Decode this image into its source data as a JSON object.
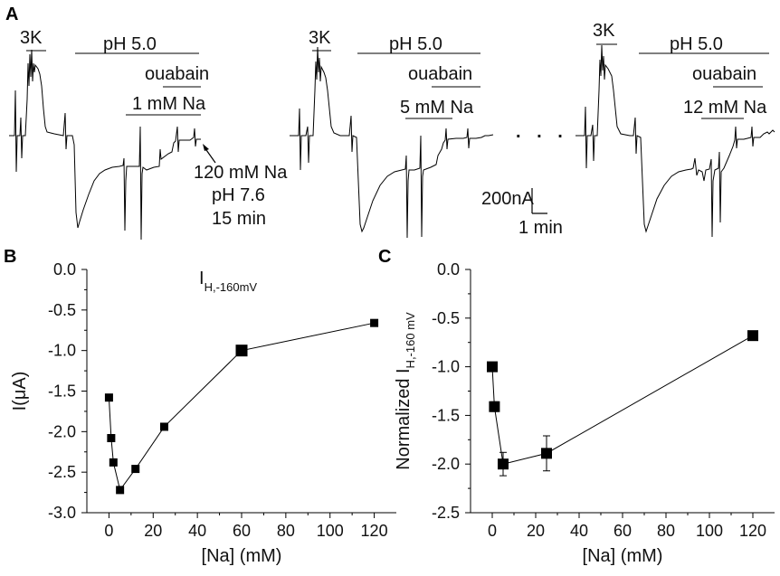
{
  "panel_a": {
    "letter": "A",
    "traces": [
      {
        "k_label": "3K",
        "ph_label": "pH 5.0",
        "ouabain_label": "ouabain",
        "na_label": "1 mM Na"
      },
      {
        "k_label": "3K",
        "ph_label": "pH 5.0",
        "ouabain_label": "ouabain",
        "na_label": "5 mM Na"
      },
      {
        "k_label": "3K",
        "ph_label": "pH 5.0",
        "ouabain_label": "ouabain",
        "na_label": "12 mM Na"
      }
    ],
    "wash_annotation": [
      "120 mM Na",
      "pH 7.6",
      "15 min"
    ],
    "ellipsis": ". . .",
    "scale_current": "200nA",
    "scale_time": "1 min"
  },
  "chart_data": [
    {
      "panel": "B",
      "type": "line",
      "inset_label": "I",
      "inset_sub": "H,-160mV",
      "xlabel": "[Na] (mM)",
      "ylabel": "I(μA)",
      "xlim": [
        -10,
        130
      ],
      "ylim": [
        -3.0,
        0.0
      ],
      "xticks": [
        0,
        20,
        40,
        60,
        80,
        100,
        120
      ],
      "yticks": [
        0.0,
        -0.5,
        -1.0,
        -1.5,
        -2.0,
        -2.5,
        -3.0
      ],
      "ytick_labels": [
        "0.0",
        "-0.5",
        "-1.0",
        "-1.5",
        "-2.0",
        "-2.5",
        "-3.0"
      ],
      "x": [
        0,
        1,
        2,
        5,
        12,
        25,
        60,
        120
      ],
      "y": [
        -1.58,
        -2.08,
        -2.38,
        -2.72,
        -2.46,
        -1.94,
        -1.0,
        -0.66
      ],
      "marker_sizes": [
        "s",
        "s",
        "s",
        "s",
        "s",
        "s",
        "l",
        "s"
      ]
    },
    {
      "panel": "C",
      "type": "line",
      "ylabel_prefix": "Normalized I",
      "ylabel_sub": "H,-160 mV",
      "xlabel": "[Na] (mM)",
      "xlim": [
        -10,
        130
      ],
      "ylim": [
        -2.5,
        0.0
      ],
      "xticks": [
        0,
        20,
        40,
        60,
        80,
        100,
        120
      ],
      "yticks": [
        0.0,
        -0.5,
        -1.0,
        -1.5,
        -2.0,
        -2.5
      ],
      "ytick_labels": [
        "0.0",
        "-0.5",
        "-1.0",
        "-1.5",
        "-2.0",
        "-2.5"
      ],
      "x": [
        0,
        1,
        5,
        25,
        120
      ],
      "y": [
        -1.0,
        -1.41,
        -2.0,
        -1.89,
        -0.68
      ],
      "err": [
        0.0,
        0.05,
        0.12,
        0.18,
        0.0
      ]
    }
  ]
}
